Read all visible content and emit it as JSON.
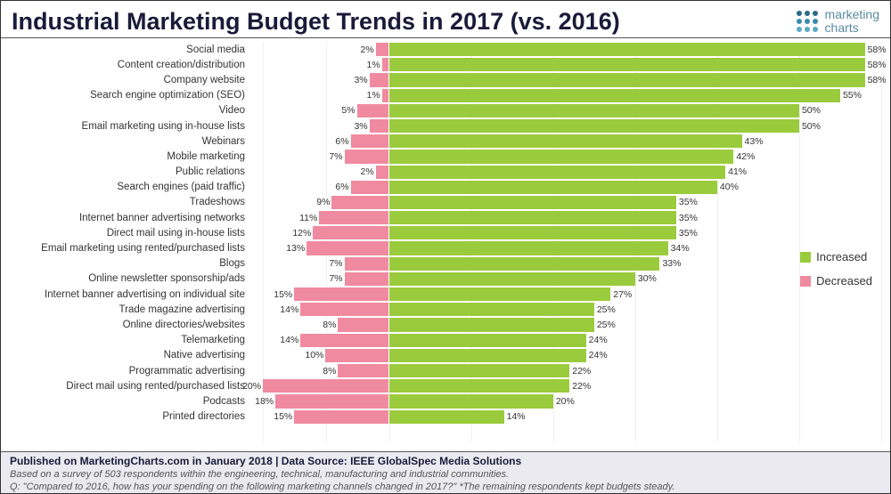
{
  "title": "Industrial Marketing Budget Trends in 2017 (vs. 2016)",
  "logo": {
    "line1": "marketing",
    "line2": "charts"
  },
  "chart": {
    "type": "diverging-bar",
    "increased_color": "#9acb3c",
    "decreased_color": "#f08aa0",
    "label_fontsize": 11.5,
    "value_fontsize": 10.5,
    "neg_max_pct": 22,
    "pos_max_pct": 60,
    "background_color": "#ffffff",
    "grid_color": "rgba(0,0,0,0.06)",
    "categories": [
      {
        "label": "Social media",
        "decreased": 2,
        "increased": 58
      },
      {
        "label": "Content creation/distribution",
        "decreased": 1,
        "increased": 58
      },
      {
        "label": "Company website",
        "decreased": 3,
        "increased": 58
      },
      {
        "label": "Search engine optimization (SEO)",
        "decreased": 1,
        "increased": 55
      },
      {
        "label": "Video",
        "decreased": 5,
        "increased": 50
      },
      {
        "label": "Email marketing using in-house lists",
        "decreased": 3,
        "increased": 50
      },
      {
        "label": "Webinars",
        "decreased": 6,
        "increased": 43
      },
      {
        "label": "Mobile marketing",
        "decreased": 7,
        "increased": 42
      },
      {
        "label": "Public relations",
        "decreased": 2,
        "increased": 41
      },
      {
        "label": "Search engines (paid traffic)",
        "decreased": 6,
        "increased": 40
      },
      {
        "label": "Tradeshows",
        "decreased": 9,
        "increased": 35
      },
      {
        "label": "Internet banner advertising networks",
        "decreased": 11,
        "increased": 35
      },
      {
        "label": "Direct mail using in-house lists",
        "decreased": 12,
        "increased": 35
      },
      {
        "label": "Email marketing using rented/purchased lists",
        "decreased": 13,
        "increased": 34
      },
      {
        "label": "Blogs",
        "decreased": 7,
        "increased": 33
      },
      {
        "label": "Online newsletter sponsorship/ads",
        "decreased": 7,
        "increased": 30
      },
      {
        "label": "Internet banner advertising on individual site",
        "decreased": 15,
        "increased": 27
      },
      {
        "label": "Trade magazine advertising",
        "decreased": 14,
        "increased": 25
      },
      {
        "label": "Online directories/websites",
        "decreased": 8,
        "increased": 25
      },
      {
        "label": "Telemarketing",
        "decreased": 14,
        "increased": 24
      },
      {
        "label": "Native advertising",
        "decreased": 10,
        "increased": 24
      },
      {
        "label": "Programmatic advertising",
        "decreased": 8,
        "increased": 22
      },
      {
        "label": "Direct mail using rented/purchased lists",
        "decreased": 20,
        "increased": 22
      },
      {
        "label": "Podcasts",
        "decreased": 18,
        "increased": 20
      },
      {
        "label": "Printed directories",
        "decreased": 15,
        "increased": 14
      }
    ]
  },
  "legend": {
    "increased": "Increased",
    "decreased": "Decreased"
  },
  "footer": {
    "line1": "Published on MarketingCharts.com in January 2018 | Data Source: IEEE GlobalSpec Media Solutions",
    "line2": "Based on a survey of 503 respondents within the engineering, technical, manufacturing and industrial communities.",
    "line3": "Q: \"Compared to 2016, how has your spending on the following marketing channels changed in 2017?\" *The remaining respondents kept budgets steady."
  }
}
